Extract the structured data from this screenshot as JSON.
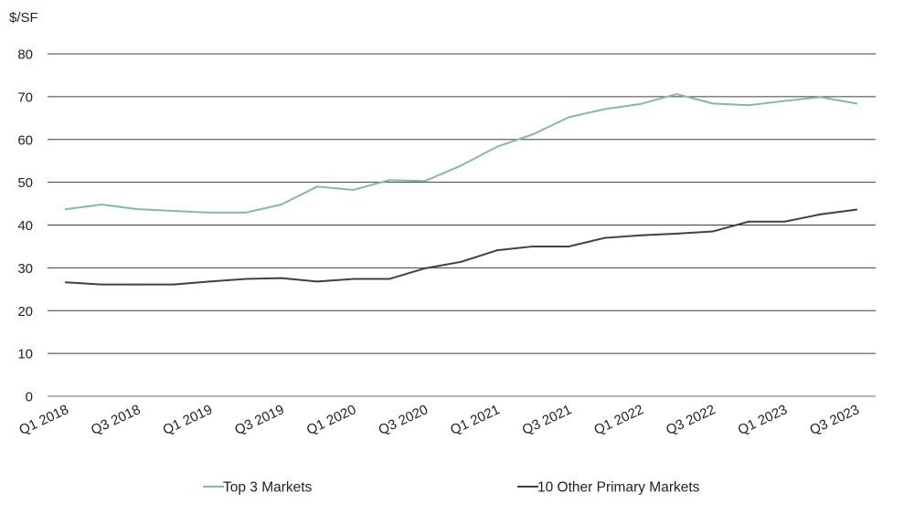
{
  "chart_data": {
    "type": "line",
    "unit_label": "$/SF",
    "ylim": [
      0,
      80
    ],
    "yticks": [
      0,
      10,
      20,
      30,
      40,
      50,
      60,
      70,
      80
    ],
    "grid": "horizontal",
    "legend_position": "bottom",
    "x": [
      "Q1 2018",
      "Q2 2018",
      "Q3 2018",
      "Q4 2018",
      "Q1 2019",
      "Q2 2019",
      "Q3 2019",
      "Q4 2019",
      "Q1 2020",
      "Q2 2020",
      "Q3 2020",
      "Q4 2020",
      "Q1 2021",
      "Q2 2021",
      "Q3 2021",
      "Q4 2021",
      "Q1 2022",
      "Q2 2022",
      "Q3 2022",
      "Q4 2022",
      "Q1 2023",
      "Q2 2023",
      "Q3 2023"
    ],
    "xtick_labels": [
      "Q1 2018",
      "Q3 2018",
      "Q1 2019",
      "Q3 2019",
      "Q1 2020",
      "Q3 2020",
      "Q1 2021",
      "Q3 2021",
      "Q1 2022",
      "Q3 2022",
      "Q1 2023",
      "Q3 2023"
    ],
    "series": [
      {
        "name": "Top 3 Markets",
        "color": "#86b8a5",
        "values": [
          43.7,
          44.8,
          43.7,
          43.3,
          42.9,
          42.9,
          44.8,
          49.0,
          48.2,
          50.5,
          50.3,
          53.9,
          58.3,
          61.2,
          65.2,
          67.1,
          68.3,
          70.6,
          68.4,
          68.0,
          69.0,
          69.9,
          68.4
        ]
      },
      {
        "name": "10 Other Primary Markets",
        "color": "#3a4249",
        "values": [
          26.6,
          26.1,
          26.1,
          26.1,
          26.8,
          27.4,
          27.6,
          26.8,
          27.4,
          27.4,
          29.9,
          31.4,
          34.1,
          35.0,
          35.0,
          37.0,
          37.6,
          38.0,
          38.5,
          40.8,
          40.8,
          42.5,
          43.6
        ]
      }
    ]
  }
}
